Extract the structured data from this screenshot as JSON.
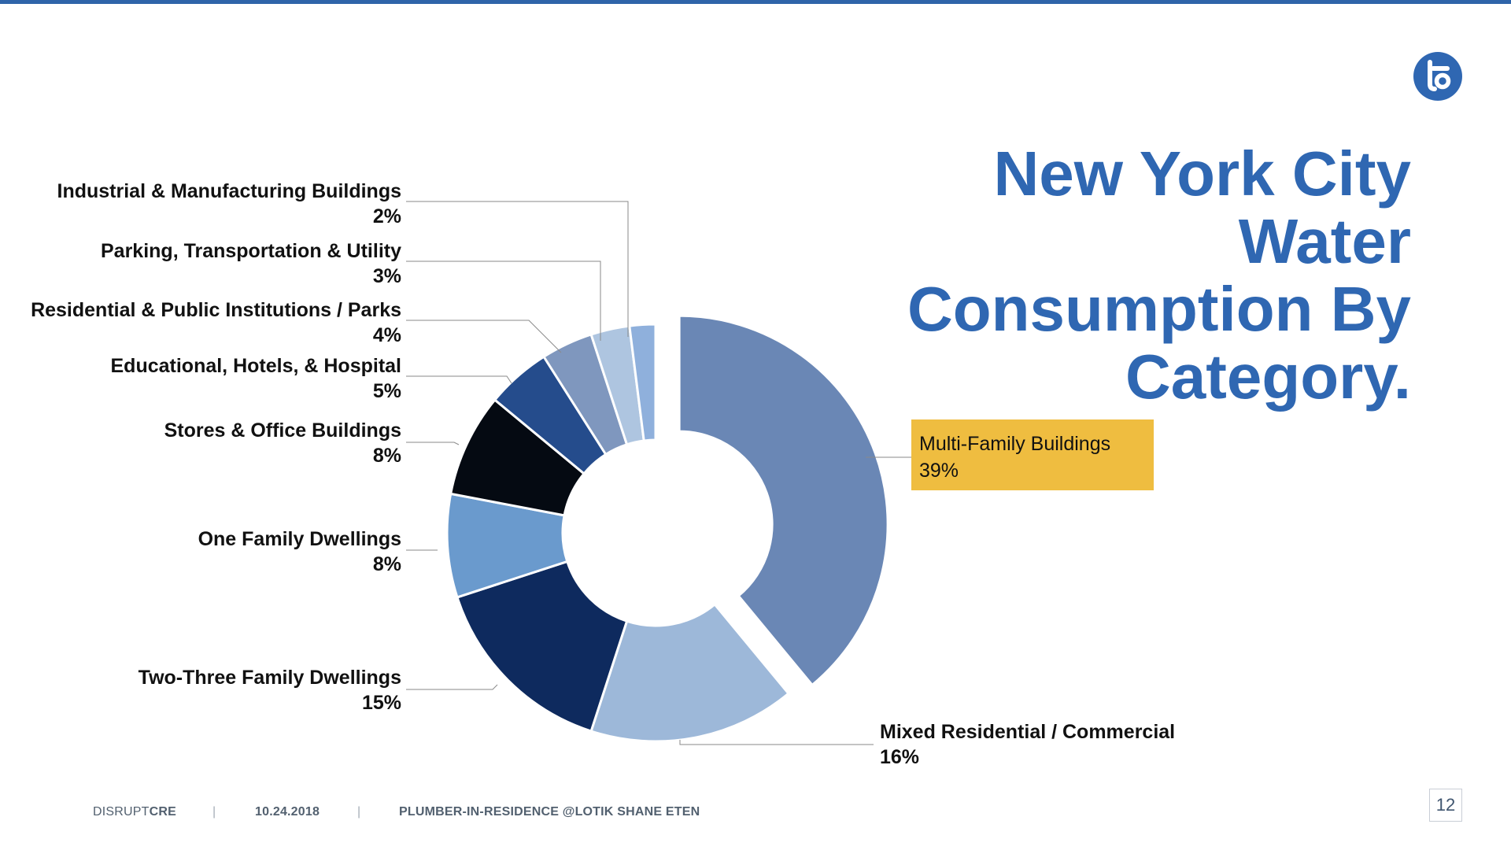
{
  "title": {
    "lines": [
      "New York City",
      "Water",
      "Consumption By",
      "Category."
    ]
  },
  "footer": {
    "brand_light": "DISRUPT",
    "brand_bold": "CRE",
    "separator": "|",
    "date": "10.24.2018",
    "presenter": "PLUMBER-IN-RESIDENCE @LOTIK SHANE ETEN"
  },
  "page_number": "12",
  "colors": {
    "accent": "#2f67b2",
    "callout_background": "#efbd40"
  },
  "icons": {
    "logo": "lotik-logo-icon"
  },
  "chart_data": {
    "type": "pie",
    "variant": "donut",
    "exploded_slice": "Multi-Family Buildings",
    "slices": [
      {
        "label": "Multi-Family Buildings",
        "value": 39,
        "value_label": "39%",
        "color": "#6a87b5"
      },
      {
        "label": "Mixed Residential / Commercial",
        "value": 16,
        "value_label": "16%",
        "color": "#9db8d9"
      },
      {
        "label": "Two-Three Family Dwellings",
        "value": 15,
        "value_label": "15%",
        "color": "#0e2a5e"
      },
      {
        "label": "One Family Dwellings",
        "value": 8,
        "value_label": "8%",
        "color": "#6a9acd"
      },
      {
        "label": "Stores & Office Buildings",
        "value": 8,
        "value_label": "8%",
        "color": "#050a12"
      },
      {
        "label": "Educational, Hotels, & Hospital",
        "value": 5,
        "value_label": "5%",
        "color": "#254c8c"
      },
      {
        "label": "Residential & Public Institutions / Parks",
        "value": 4,
        "value_label": "4%",
        "color": "#7f97be"
      },
      {
        "label": "Parking, Transportation & Utility",
        "value": 3,
        "value_label": "3%",
        "color": "#aec5e0"
      },
      {
        "label": "Industrial & Manufacturing Buildings",
        "value": 2,
        "value_label": "2%",
        "color": "#8fb0dc"
      }
    ]
  }
}
